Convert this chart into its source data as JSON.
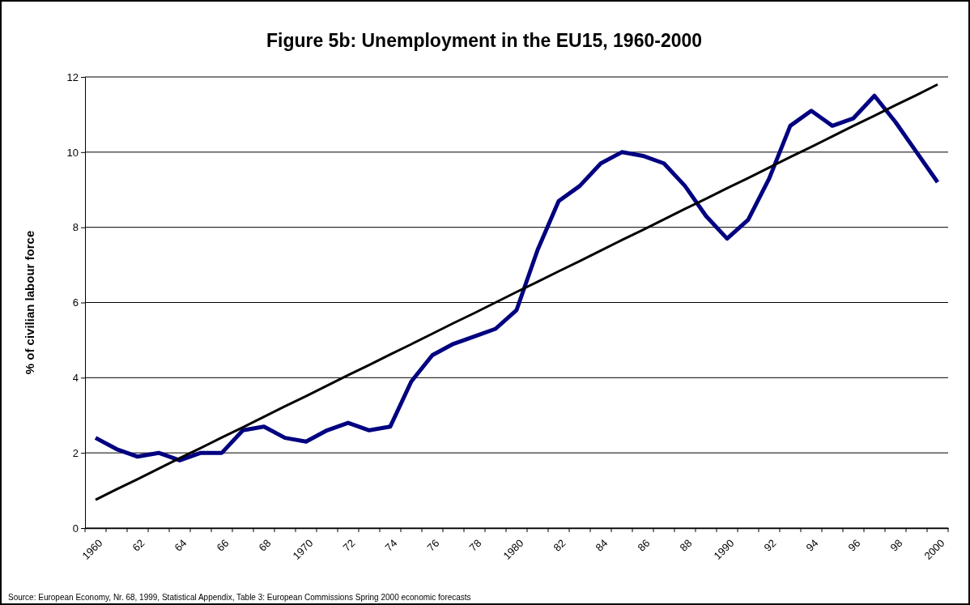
{
  "chart_data": {
    "type": "line",
    "title": "Figure 5b: Unemployment in the EU15, 1960-2000",
    "ylabel": "% of civilian labour force",
    "categories": [
      "1960",
      null,
      "62",
      null,
      "64",
      null,
      "66",
      null,
      "68",
      null,
      "1970",
      null,
      "72",
      null,
      "74",
      null,
      "76",
      null,
      "78",
      null,
      "1980",
      null,
      "82",
      null,
      "84",
      null,
      "86",
      null,
      "88",
      null,
      "1990",
      null,
      "92",
      null,
      "94",
      null,
      "96",
      null,
      "98",
      null,
      "2000"
    ],
    "series": [
      {
        "color": "#000080",
        "values": [
          2.4,
          2.1,
          1.9,
          2.0,
          1.8,
          2.0,
          2.0,
          2.6,
          2.7,
          2.4,
          2.3,
          2.6,
          2.8,
          2.6,
          2.7,
          3.9,
          4.6,
          4.9,
          5.1,
          5.3,
          5.8,
          7.4,
          8.7,
          9.1,
          9.7,
          10.0,
          9.9,
          9.7,
          9.1,
          8.3,
          7.7,
          8.2,
          9.3,
          10.7,
          11.1,
          10.7,
          10.9,
          11.5,
          10.8,
          10.0,
          9.2
        ]
      },
      {
        "type": "line",
        "color": "#000000",
        "values": [
          0.75,
          1.03,
          1.3,
          1.58,
          1.86,
          2.13,
          2.41,
          2.68,
          2.96,
          3.24,
          3.51,
          3.79,
          4.07,
          4.34,
          4.62,
          4.89,
          5.17,
          5.45,
          5.72,
          6.0,
          6.28,
          6.55,
          6.83,
          7.1,
          7.38,
          7.66,
          7.93,
          8.21,
          8.49,
          8.76,
          9.04,
          9.31,
          9.59,
          9.87,
          10.14,
          10.42,
          10.7,
          10.97,
          11.25,
          11.52,
          11.8
        ]
      }
    ],
    "ylim": [
      0,
      12
    ],
    "yticks": [
      0,
      2,
      4,
      6,
      8,
      10,
      12
    ],
    "grid": "y",
    "marker": "none",
    "line_style": "solid",
    "annotations": [
      "Source: European Economy, Nr. 68, 1999, Statistical Appendix, Table 3: European Commissions Spring 2000 economic forecasts"
    ]
  }
}
